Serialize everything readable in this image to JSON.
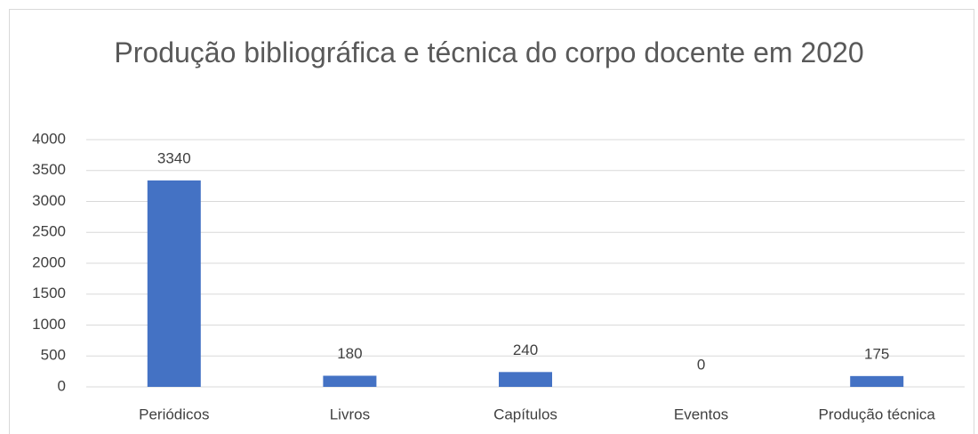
{
  "chart_data": {
    "type": "bar",
    "title": "Produção bibliográfica e técnica do corpo docente em 2020",
    "categories": [
      "Periódicos",
      "Livros",
      "Capítulos",
      "Eventos",
      "Produção técnica"
    ],
    "values": [
      3340,
      180,
      240,
      0,
      175
    ],
    "color": "#4472c4",
    "ylim": [
      0,
      4000
    ],
    "yticks": [
      0,
      500,
      1000,
      1500,
      2000,
      2500,
      3000,
      3500,
      4000
    ],
    "grid": true
  }
}
